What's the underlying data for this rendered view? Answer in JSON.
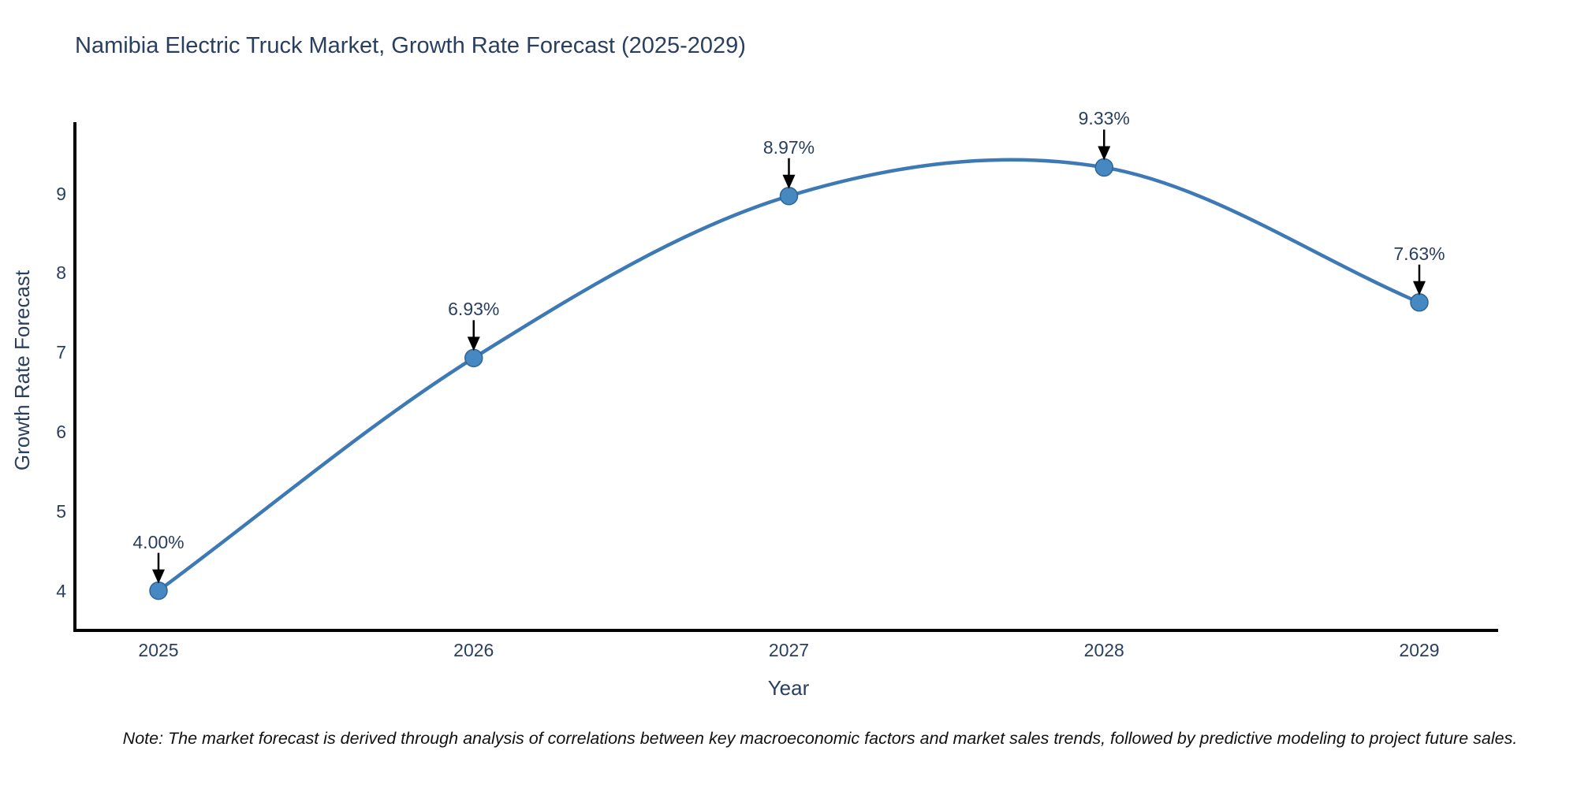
{
  "note": "Note: The market forecast is derived through analysis of correlations between key macroeconomic factors and market sales trends, followed by predictive modeling to project future sales.",
  "chart_data": {
    "type": "line",
    "title": "Namibia Electric Truck Market, Growth Rate Forecast (2025-2029)",
    "x": [
      "2025",
      "2026",
      "2027",
      "2028",
      "2029"
    ],
    "values": [
      4.0,
      6.93,
      8.97,
      9.33,
      7.63
    ],
    "point_labels": [
      "4.00%",
      "6.93%",
      "8.97%",
      "9.33%",
      "7.63%"
    ],
    "xlabel": "Year",
    "ylabel": "Growth Rate Forecast",
    "yticks": [
      4,
      5,
      6,
      7,
      8,
      9
    ],
    "ylim": [
      3.5,
      9.9
    ],
    "line_shape": "spline",
    "grid": false,
    "legend": "none",
    "colors": {
      "line": "#3d7ab5",
      "marker": "#4689c2",
      "marker_edge": "#2f6496",
      "arrow": "#000000",
      "text": "#2a3f5f",
      "axis": "#000000"
    }
  }
}
